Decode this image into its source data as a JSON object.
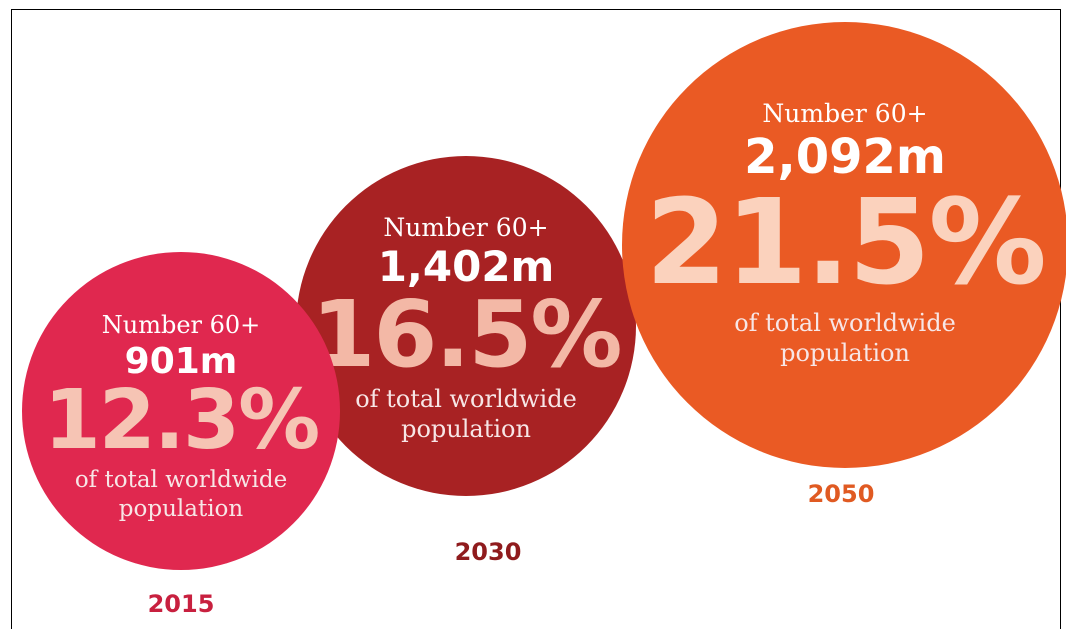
{
  "chart_data": {
    "type": "bubble",
    "series_name": "Number 60+",
    "unit": "m",
    "points": [
      {
        "year": "2015",
        "label": "Number 60+",
        "number": "901m",
        "number_value": 901,
        "percent": "12.3%",
        "percent_value": 12.3,
        "description": "of total worldwide population",
        "color": "#e0284f",
        "text_color": "#f6c4b4",
        "year_color": "#c8203f"
      },
      {
        "year": "2030",
        "label": "Number 60+",
        "number": "1,402m",
        "number_value": 1402,
        "percent": "16.5%",
        "percent_value": 16.5,
        "description": "of total worldwide population",
        "color": "#a82223",
        "text_color": "#f3b8a6",
        "year_color": "#8f1b1d"
      },
      {
        "year": "2050",
        "label": "Number 60+",
        "number": "2,092m",
        "number_value": 2092,
        "percent": "21.5%",
        "percent_value": 21.5,
        "description": "of total worldwide population",
        "color": "#ea5a24",
        "text_color": "#fbd2bd",
        "year_color": "#e05a22"
      }
    ]
  }
}
